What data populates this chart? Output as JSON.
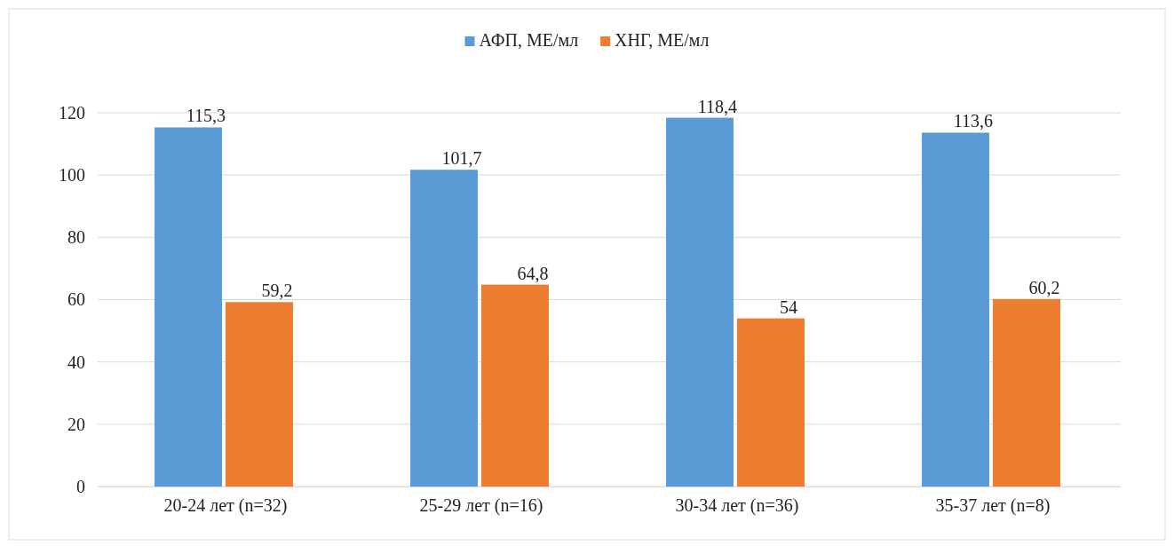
{
  "chart_data": {
    "type": "bar",
    "categories": [
      "20-24 лет (n=32)",
      "25-29 лет (n=16)",
      "30-34 лет (n=36)",
      "35-37 лет (n=8)"
    ],
    "series": [
      {
        "name": "АФП, МЕ/мл",
        "color": "#5b9bd5",
        "values": [
          115.3,
          101.7,
          118.4,
          113.6
        ],
        "value_labels": [
          "115,3",
          "101,7",
          "118,4",
          "113,6"
        ]
      },
      {
        "name": "ХНГ, МЕ/мл",
        "color": "#ed7d31",
        "values": [
          59.2,
          64.8,
          54,
          60.2
        ],
        "value_labels": [
          "59,2",
          "64,8",
          "54",
          "60,2"
        ]
      }
    ],
    "ylim": [
      0,
      120
    ],
    "yticks": [
      0,
      20,
      40,
      60,
      80,
      100,
      120
    ],
    "grid": "y",
    "legend": "top"
  }
}
